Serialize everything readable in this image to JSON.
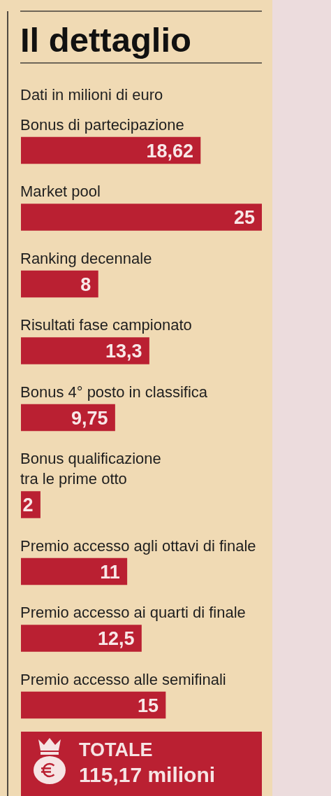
{
  "chart_data": {
    "type": "bar",
    "orientation": "horizontal",
    "title": "Il dettaglio",
    "subtitle": "Dati in milioni di euro",
    "categories": [
      "Bonus di partecipazione",
      "Market pool",
      "Ranking decennale",
      "Risultati fase campionato",
      "Bonus 4° posto in classifica",
      "Bonus qualificazione\ntra le prime otto",
      "Premio accesso agli ottavi di finale",
      "Premio accesso ai quarti di finale",
      "Premio accesso alle semifinali"
    ],
    "values": [
      18.62,
      25,
      8,
      13.3,
      9.75,
      2,
      11,
      12.5,
      15
    ],
    "value_labels": [
      "18,62",
      "25",
      "8",
      "13,3",
      "9,75",
      "2",
      "11",
      "12,5",
      "15"
    ],
    "color": "#ba2032",
    "tick_labels": "y",
    "annotations": [
      "TOTALE",
      "115,17 milioni"
    ]
  }
}
